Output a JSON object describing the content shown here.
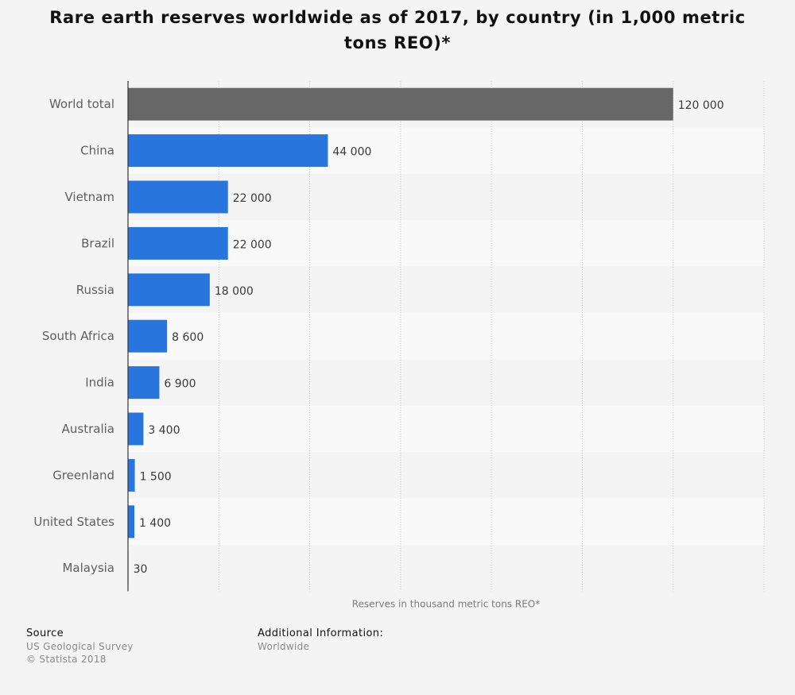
{
  "title": "Rare earth reserves worldwide as of 2017, by country (in 1,000 metric tons REO)*",
  "colors": {
    "bar": "#2876dd",
    "total_bar": "#676767",
    "band_dark": "#f4f4f4",
    "band_light": "#f9f9f9",
    "grid": "#c9c9c9",
    "axis": "#333333"
  },
  "chart_data": {
    "type": "bar",
    "orientation": "horizontal",
    "categories": [
      "World total",
      "China",
      "Vietnam",
      "Brazil",
      "Russia",
      "South Africa",
      "India",
      "Australia",
      "Greenland",
      "United States",
      "Malaysia"
    ],
    "values": [
      120000,
      44000,
      22000,
      22000,
      18000,
      8600,
      6900,
      3400,
      1500,
      1400,
      30
    ],
    "value_labels": [
      "120 000",
      "44 000",
      "22 000",
      "22 000",
      "18 000",
      "8 600",
      "6 900",
      "3 400",
      "1 500",
      "1 400",
      "30"
    ],
    "xlabel": "Reserves in thousand metric tons REO*",
    "xlim": [
      0,
      140000
    ],
    "grid": true
  },
  "footer": {
    "source_heading": "Source",
    "source_lines": [
      "US Geological Survey",
      "© Statista 2018"
    ],
    "info_heading": "Additional Information:",
    "info_lines": [
      "Worldwide"
    ]
  }
}
